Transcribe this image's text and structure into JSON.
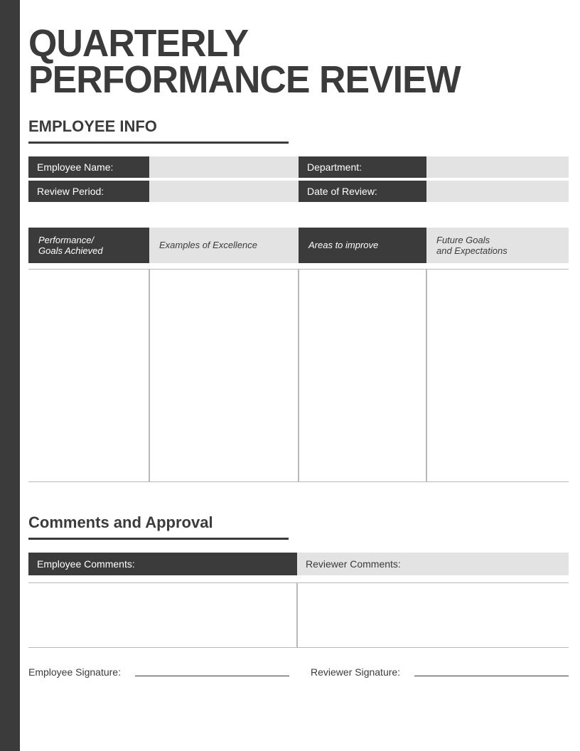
{
  "colors": {
    "dark": "#3b3b3b",
    "light": "#e3e3e3",
    "white": "#ffffff",
    "border": "#b8b8b8"
  },
  "title_line1": "QUARTERLY",
  "title_line2": "PERFORMANCE REVIEW",
  "section_employee_info": "EMPLOYEE INFO",
  "info": {
    "employee_name_label": "Employee Name:",
    "employee_name_value": "",
    "department_label": "Department:",
    "department_value": "",
    "review_period_label": "Review Period:",
    "review_period_value": "",
    "date_of_review_label": "Date of Review:",
    "date_of_review_value": ""
  },
  "headers": {
    "col1": "Performance/\nGoals Achieved",
    "col2": "Examples of Excellence",
    "col3": "Areas to improve",
    "col4": "Future Goals\nand Expectations"
  },
  "details": {
    "col1": "",
    "col2": "",
    "col3": "",
    "col4": ""
  },
  "section_comments": "Comments and Approval",
  "comments": {
    "employee_label": "Employee Comments:",
    "employee_value": "",
    "reviewer_label": "Reviewer Comments:",
    "reviewer_value": ""
  },
  "signatures": {
    "employee_label": "Employee Signature:",
    "reviewer_label": "Reviewer Signature:"
  }
}
